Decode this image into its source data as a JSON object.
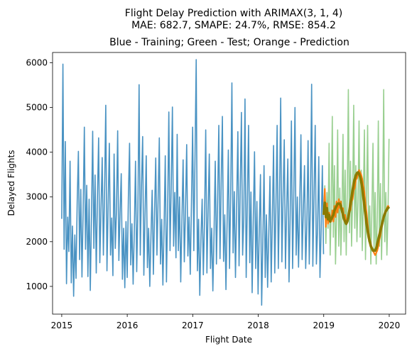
{
  "chart_data": {
    "type": "line",
    "title_line1": "Flight Delay Prediction with ARIMAX(3, 1, 4)",
    "title_line2": "MAE: 682.7, SMAPE: 24.7%, RMSE: 854.2",
    "subtitle": "Blue - Training; Green - Test; Orange - Prediction",
    "xlabel": "Flight Date",
    "ylabel": "Delayed Flights",
    "xlim": [
      2014.86,
      2020.25
    ],
    "ylim": [
      380,
      6230
    ],
    "x_ticks": [
      {
        "value": 2015,
        "label": "2015"
      },
      {
        "value": 2016,
        "label": "2016"
      },
      {
        "value": 2017,
        "label": "2017"
      },
      {
        "value": 2018,
        "label": "2018"
      },
      {
        "value": 2019,
        "label": "2019"
      },
      {
        "value": 2020,
        "label": "2020"
      }
    ],
    "y_ticks": [
      {
        "value": 1000,
        "label": "1000"
      },
      {
        "value": 2000,
        "label": "2000"
      },
      {
        "value": 3000,
        "label": "3000"
      },
      {
        "value": 4000,
        "label": "4000"
      },
      {
        "value": 5000,
        "label": "5000"
      },
      {
        "value": 6000,
        "label": "6000"
      }
    ],
    "grid": false,
    "series": [
      {
        "color": "#4a93c3",
        "x_range": [
          2015.0,
          2018.997
        ],
        "values": [
          2510,
          5970,
          1830,
          4240,
          1060,
          2550,
          1780,
          3800,
          1080,
          2350,
          780,
          2150,
          1180,
          2900,
          4020,
          1600,
          3170,
          1210,
          2700,
          4560,
          1830,
          3260,
          1220,
          2950,
          910,
          2550,
          4470,
          1850,
          3490,
          1300,
          2980,
          4320,
          1530,
          2720,
          3880,
          1700,
          3120,
          5050,
          1350,
          2800,
          4200,
          1700,
          2530,
          1240,
          3960,
          1850,
          2700,
          4480,
          1580,
          2650,
          3520,
          1160,
          2300,
          970,
          2450,
          1200,
          2980,
          4200,
          1480,
          2400,
          1050,
          2250,
          3800,
          1330,
          2720,
          5510,
          1700,
          3220,
          4350,
          1250,
          2600,
          3920,
          1420,
          2300,
          1000,
          2150,
          3150,
          1270,
          2650,
          3870,
          1700,
          2950,
          4320,
          1500,
          2500,
          1030,
          2300,
          3920,
          1100,
          2700,
          4900,
          1800,
          3200,
          5010,
          1900,
          3100,
          1640,
          4400,
          1800,
          3000,
          1100,
          2500,
          3830,
          1550,
          2700,
          4170,
          1680,
          2550,
          1270,
          2850,
          4560,
          1800,
          3900,
          6070,
          1350,
          2500,
          800,
          2100,
          2950,
          1260,
          2500,
          4500,
          1300,
          2700,
          3960,
          1400,
          2300,
          900,
          2200,
          3800,
          1500,
          2900,
          4600,
          1620,
          3300,
          4800,
          1560,
          2600,
          930,
          2500,
          4050,
          1400,
          3100,
          5550,
          1750,
          3120,
          1200,
          2800,
          4460,
          1460,
          3180,
          4890,
          1700,
          2550,
          5190,
          1200,
          2900,
          4600,
          1530,
          3110,
          860,
          2500,
          4010,
          1400,
          2900,
          830,
          2300,
          3500,
          580,
          2000,
          3700,
          1200,
          2600,
          980,
          2200,
          3460,
          1100,
          2500,
          4150,
          1300,
          2800,
          4600,
          1400,
          3000,
          5210,
          1550,
          3000,
          4280,
          1400,
          2700,
          3850,
          1100,
          2650,
          4700,
          1400,
          3050,
          5000,
          1700,
          3000,
          1430,
          2850,
          4390,
          1600,
          2700,
          3700,
          1400,
          2400,
          4260,
          1500,
          2950,
          5520,
          1450,
          3000,
          4600,
          1500,
          2300,
          3900,
          1200,
          2250,
          3700,
          1720
        ]
      },
      {
        "color": "#93cc8a",
        "x_range": [
          2019.0,
          2019.997
        ],
        "values": [
          2600,
          3250,
          1960,
          3100,
          2300,
          4200,
          1700,
          2700,
          4800,
          2100,
          3700,
          1500,
          2600,
          4500,
          1900,
          3200,
          1700,
          2600,
          4400,
          2000,
          3600,
          1700,
          3100,
          5400,
          2200,
          3800,
          1900,
          3000,
          5050,
          2300,
          3700,
          2000,
          2900,
          4700,
          2100,
          3600,
          1800,
          2900,
          4500,
          1600,
          3000,
          4600,
          2000,
          2800,
          1500,
          2700,
          4200,
          1800,
          3100,
          1500,
          2500,
          4700,
          1900,
          3300,
          1600,
          2700,
          5400,
          2000,
          3100,
          1700,
          2600,
          4300
        ]
      },
      {
        "color": "#ff7f0e",
        "x_range": [
          2019.0,
          2019.997
        ],
        "values": [
          2600,
          3180,
          2330,
          2860,
          2400,
          2650,
          2550,
          2450,
          2700,
          2450,
          2800,
          2550,
          2900,
          2650,
          2950,
          2750,
          2900,
          2650,
          2750,
          2500,
          2600,
          2400,
          2500,
          2500,
          2700,
          2700,
          2900,
          2950,
          3150,
          3200,
          3380,
          3420,
          3520,
          3600,
          3550,
          3500,
          3400,
          3250,
          3100,
          2850,
          2650,
          2400,
          2200,
          2050,
          1950,
          1850,
          1800,
          1750,
          1700,
          1750,
          1800,
          1900,
          2050,
          2150,
          2300,
          2400,
          2550,
          2600,
          2700,
          2750,
          2800,
          2780
        ]
      },
      {
        "color": "#8b7a00",
        "x_range": [
          2019.0,
          2019.997
        ],
        "values": [
          2600,
          2870,
          2550,
          2750,
          2500,
          2600,
          2450,
          2500,
          2550,
          2600,
          2700,
          2750,
          2800,
          2850,
          2850,
          2850,
          2800,
          2700,
          2600,
          2500,
          2450,
          2400,
          2450,
          2550,
          2700,
          2850,
          3000,
          3150,
          3300,
          3400,
          3480,
          3530,
          3550,
          3520,
          3450,
          3350,
          3200,
          3000,
          2800,
          2600,
          2400,
          2250,
          2100,
          2000,
          1900,
          1850,
          1800,
          1800,
          1800,
          1850,
          1950,
          2050,
          2150,
          2250,
          2350,
          2450,
          2550,
          2620,
          2680,
          2720,
          2750,
          2780
        ]
      }
    ]
  }
}
